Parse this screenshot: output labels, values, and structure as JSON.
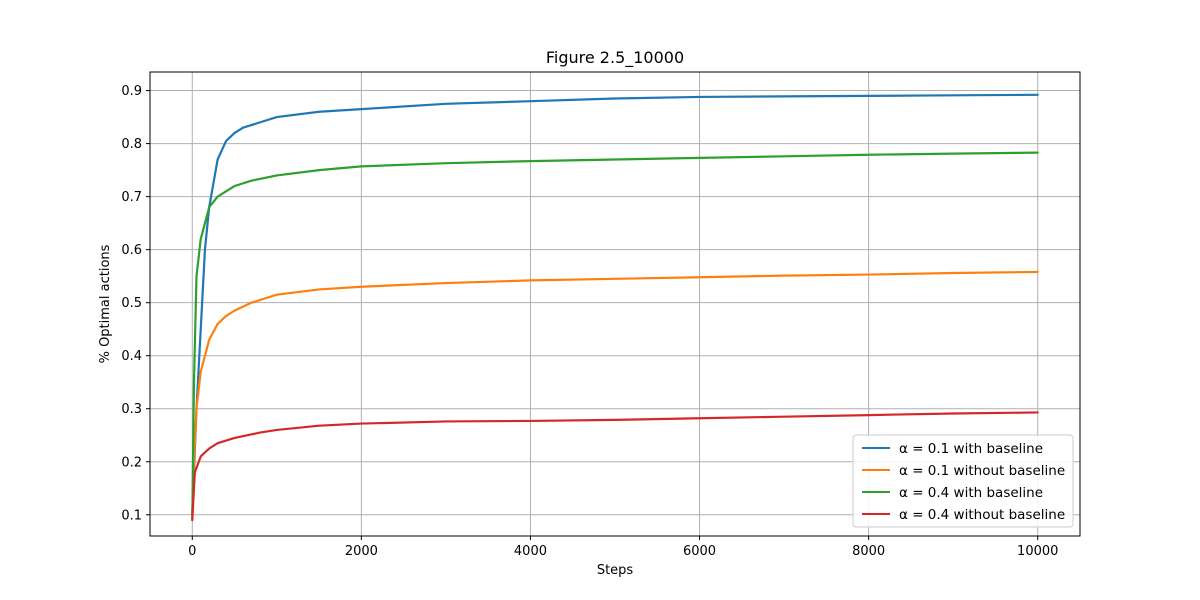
{
  "chart_data": {
    "type": "line",
    "title": "Figure 2.5_10000",
    "xlabel": "Steps",
    "ylabel": "% Optimal actions",
    "xlim": [
      -500,
      10500
    ],
    "ylim": [
      0.06,
      0.935
    ],
    "xticks": [
      0,
      2000,
      4000,
      6000,
      8000,
      10000
    ],
    "yticks": [
      0.1,
      0.2,
      0.3,
      0.4,
      0.5,
      0.6,
      0.7,
      0.8,
      0.9
    ],
    "grid": true,
    "legend_position": "lower-right",
    "series": [
      {
        "name": "α = 0.1 with baseline",
        "color": "#1f77b4",
        "points": [
          [
            0,
            0.1
          ],
          [
            50,
            0.3
          ],
          [
            100,
            0.45
          ],
          [
            150,
            0.6
          ],
          [
            200,
            0.68
          ],
          [
            300,
            0.77
          ],
          [
            400,
            0.805
          ],
          [
            500,
            0.82
          ],
          [
            600,
            0.83
          ],
          [
            800,
            0.84
          ],
          [
            1000,
            0.85
          ],
          [
            1500,
            0.86
          ],
          [
            2000,
            0.865
          ],
          [
            3000,
            0.875
          ],
          [
            4000,
            0.88
          ],
          [
            5000,
            0.885
          ],
          [
            6000,
            0.888
          ],
          [
            7000,
            0.889
          ],
          [
            8000,
            0.89
          ],
          [
            9000,
            0.891
          ],
          [
            10000,
            0.892
          ]
        ]
      },
      {
        "name": "α = 0.1 without baseline",
        "color": "#ff7f0e",
        "points": [
          [
            0,
            0.1
          ],
          [
            20,
            0.2
          ],
          [
            50,
            0.3
          ],
          [
            100,
            0.37
          ],
          [
            200,
            0.43
          ],
          [
            300,
            0.46
          ],
          [
            400,
            0.475
          ],
          [
            500,
            0.485
          ],
          [
            700,
            0.5
          ],
          [
            1000,
            0.515
          ],
          [
            1500,
            0.525
          ],
          [
            2000,
            0.53
          ],
          [
            3000,
            0.537
          ],
          [
            4000,
            0.542
          ],
          [
            5000,
            0.545
          ],
          [
            6000,
            0.548
          ],
          [
            7000,
            0.551
          ],
          [
            8000,
            0.553
          ],
          [
            9000,
            0.556
          ],
          [
            10000,
            0.558
          ]
        ]
      },
      {
        "name": "α = 0.4 with baseline",
        "color": "#2ca02c",
        "points": [
          [
            0,
            0.09
          ],
          [
            20,
            0.35
          ],
          [
            50,
            0.55
          ],
          [
            100,
            0.62
          ],
          [
            200,
            0.68
          ],
          [
            300,
            0.7
          ],
          [
            400,
            0.71
          ],
          [
            500,
            0.72
          ],
          [
            700,
            0.73
          ],
          [
            1000,
            0.74
          ],
          [
            1500,
            0.75
          ],
          [
            2000,
            0.757
          ],
          [
            3000,
            0.763
          ],
          [
            4000,
            0.767
          ],
          [
            5000,
            0.77
          ],
          [
            6000,
            0.773
          ],
          [
            7000,
            0.776
          ],
          [
            8000,
            0.779
          ],
          [
            9000,
            0.781
          ],
          [
            10000,
            0.783
          ]
        ]
      },
      {
        "name": "α = 0.4 without baseline",
        "color": "#d62728",
        "points": [
          [
            0,
            0.09
          ],
          [
            30,
            0.18
          ],
          [
            100,
            0.21
          ],
          [
            200,
            0.225
          ],
          [
            300,
            0.235
          ],
          [
            500,
            0.245
          ],
          [
            800,
            0.255
          ],
          [
            1000,
            0.26
          ],
          [
            1500,
            0.268
          ],
          [
            2000,
            0.272
          ],
          [
            3000,
            0.276
          ],
          [
            4000,
            0.277
          ],
          [
            5000,
            0.279
          ],
          [
            6000,
            0.282
          ],
          [
            7000,
            0.285
          ],
          [
            8000,
            0.288
          ],
          [
            9000,
            0.291
          ],
          [
            10000,
            0.293
          ]
        ]
      }
    ]
  }
}
